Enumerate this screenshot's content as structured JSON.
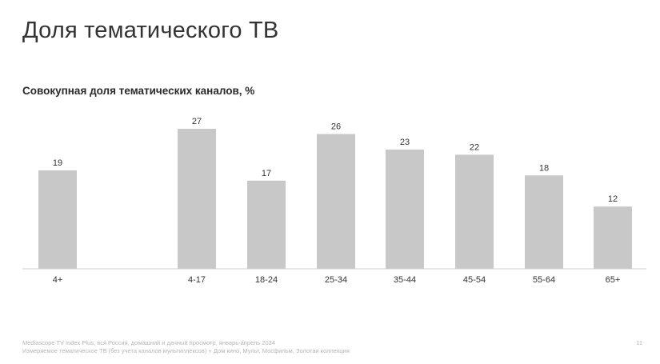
{
  "slide": {
    "title": "Доля тематического ТВ",
    "page_number": "11"
  },
  "footer": {
    "line1": "Mediascope TV Index Plus, вся Россия, домашний и дачный просмотр, январь-апрель 2024",
    "line2": "Измеряемое тематическое ТВ (без учета каналов мультиплексов) + Дом кино, Мульт, Мосфильм, Золотая коллекция"
  },
  "colors": {
    "bar": "#c8c8c8",
    "axis": "#cfcfcf"
  },
  "chart_data": {
    "type": "bar",
    "title": "Совокупная доля тематических каналов, %",
    "xlabel": "",
    "ylabel": "",
    "categories": [
      "4+",
      "4-17",
      "18-24",
      "25-34",
      "35-44",
      "45-54",
      "55-64",
      "65+"
    ],
    "values": [
      19,
      27,
      17,
      26,
      23,
      22,
      18,
      12
    ],
    "ylim": [
      0,
      30
    ],
    "grid": false,
    "data_labels": true
  }
}
